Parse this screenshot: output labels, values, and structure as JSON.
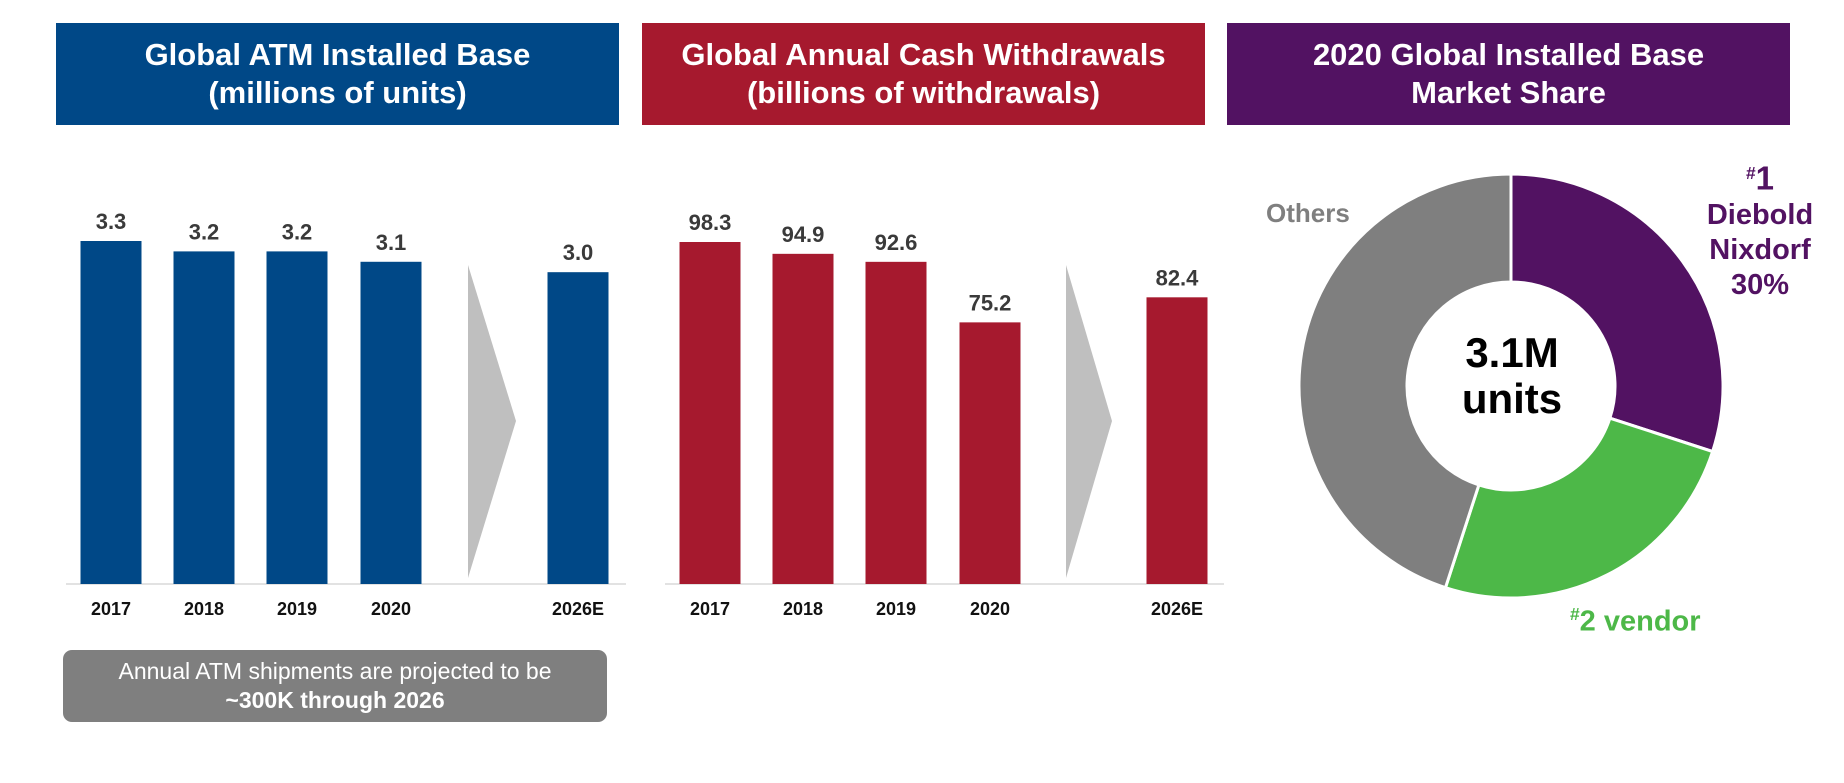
{
  "colors": {
    "blue": "#004887",
    "red": "#A6192E",
    "purple": "#521262",
    "green": "#4DB848",
    "grey": "#7F7F7F",
    "arrow": "#BFBFBF",
    "label_text": "#3A3A3A"
  },
  "panels": [
    {
      "title_line1": "Global ATM Installed Base",
      "title_line2": "(millions of units)"
    },
    {
      "title_line1": "Global Annual Cash Withdrawals",
      "title_line2": "(billions of withdrawals)"
    },
    {
      "title_line1": "2020 Global Installed Base",
      "title_line2": "Market Share"
    }
  ],
  "note": {
    "line1": "Annual ATM shipments are projected to be",
    "line2": "~300K through 2026"
  },
  "pie_labels": {
    "others": "Others",
    "first_rank": "#",
    "first_num": "1",
    "first_name1": "Diebold",
    "first_name2": "Nixdorf",
    "first_pct": "30%",
    "second_rank": "#",
    "second_num": "2",
    "second_name": "vendor",
    "center_line1": "3.1M",
    "center_line2": "units"
  },
  "chart_data": [
    {
      "type": "bar",
      "title": "Global ATM Installed Base (millions of units)",
      "categories": [
        "2017",
        "2018",
        "2019",
        "2020",
        "2026E"
      ],
      "values": [
        3.3,
        3.2,
        3.2,
        3.1,
        3.0
      ],
      "value_labels": [
        "3.3",
        "3.2",
        "3.2",
        "3.1",
        "3.0"
      ],
      "ylim": [
        0,
        3.3
      ],
      "color": "#004887"
    },
    {
      "type": "bar",
      "title": "Global Annual Cash Withdrawals (billions of withdrawals)",
      "categories": [
        "2017",
        "2018",
        "2019",
        "2020",
        "2026E"
      ],
      "values": [
        98.3,
        94.9,
        92.6,
        75.2,
        82.4
      ],
      "value_labels": [
        "98.3",
        "94.9",
        "92.6",
        "75.2",
        "82.4"
      ],
      "ylim": [
        0,
        98.3
      ],
      "color": "#A6192E"
    },
    {
      "type": "pie",
      "title": "2020 Global Installed Base Market Share",
      "center_label": "3.1M units",
      "slices": [
        {
          "name": "Diebold Nixdorf",
          "value": 30,
          "color": "#521262"
        },
        {
          "name": "#2 vendor",
          "value": 25,
          "color": "#4DB848"
        },
        {
          "name": "Others",
          "value": 45,
          "color": "#7F7F7F"
        }
      ]
    }
  ]
}
